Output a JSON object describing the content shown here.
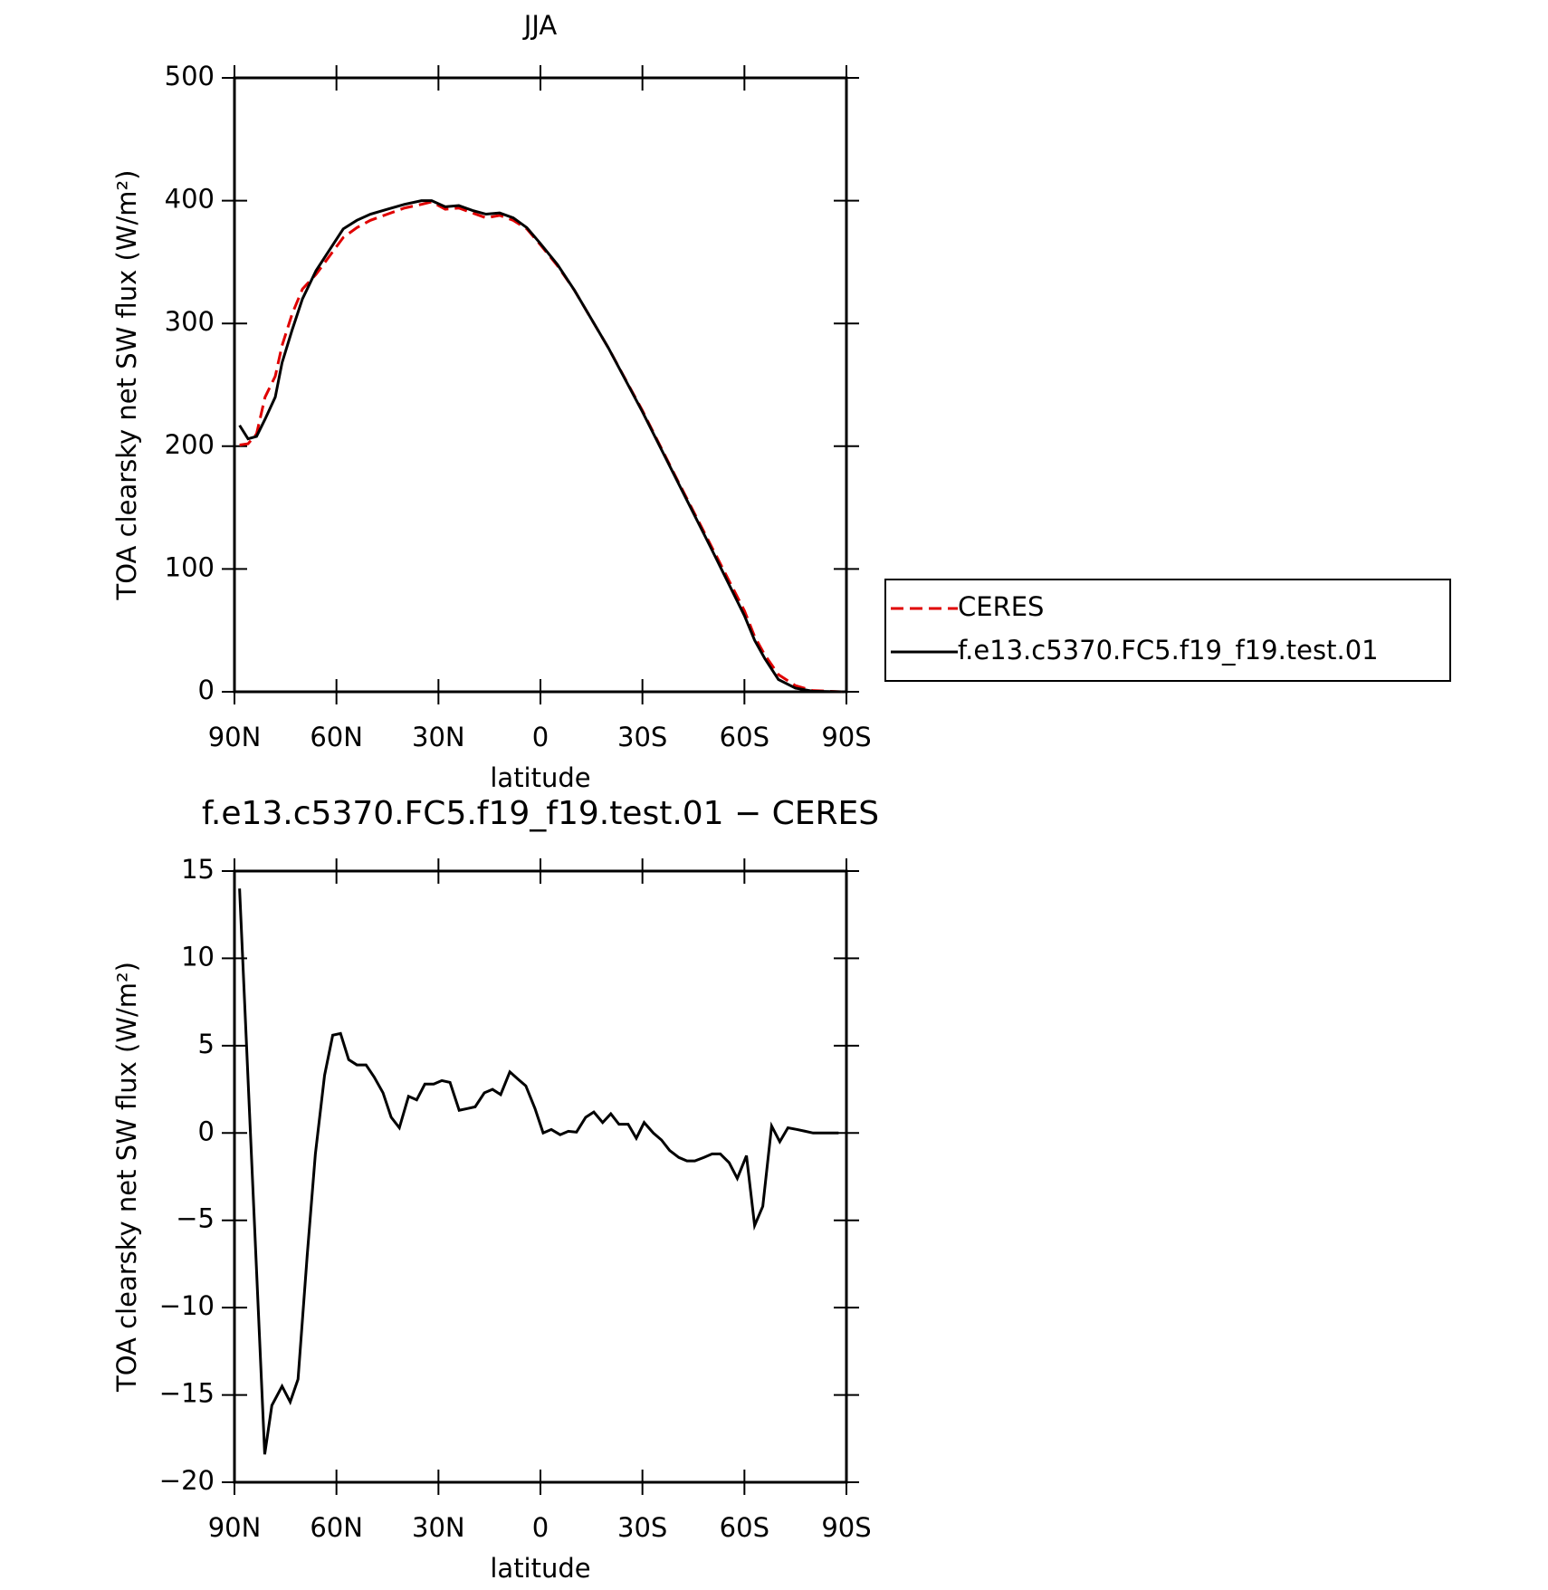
{
  "chart_data": [
    {
      "type": "line",
      "title": "JJA",
      "xlabel": "latitude",
      "ylabel": "TOA clearsky net SW flux (W/m²)",
      "x": [
        88.5,
        86,
        83.5,
        81,
        78,
        76,
        73,
        70,
        66,
        62,
        58,
        54,
        50,
        45,
        40,
        35,
        32,
        28,
        24,
        20,
        16,
        12,
        8,
        4,
        0,
        -5,
        -10,
        -20,
        -30,
        -40,
        -50,
        -55,
        -60,
        -63,
        -66,
        -70,
        -75,
        -80,
        -88.5
      ],
      "series": [
        {
          "name": "CERES",
          "color": "#e00000",
          "dash": true,
          "values": [
            201,
            202,
            210,
            240,
            257,
            282,
            308,
            328,
            340,
            355,
            370,
            378,
            384,
            389,
            394,
            397,
            399,
            393,
            394,
            390,
            386,
            388,
            384,
            377,
            364,
            347,
            327,
            280,
            229,
            174,
            120,
            93,
            66,
            45,
            30,
            14,
            5,
            1,
            0
          ]
        },
        {
          "name": "f.e13.c5370.FC5.f19_f19.test.01",
          "color": "#000000",
          "dash": false,
          "values": [
            217,
            206,
            208,
            222,
            240,
            268,
            295,
            320,
            343,
            360,
            377,
            384,
            389,
            393,
            397,
            400,
            400,
            395,
            396,
            392,
            389,
            390,
            386,
            378,
            365,
            348,
            327,
            280,
            228,
            173,
            118,
            90,
            62,
            42,
            27,
            10,
            3,
            0.5,
            0
          ]
        }
      ],
      "xlim": [
        90,
        -90
      ],
      "xticks": [
        {
          "value": 90,
          "label": "90N"
        },
        {
          "value": 60,
          "label": "60N"
        },
        {
          "value": 30,
          "label": "30N"
        },
        0,
        {
          "value": -30,
          "label": "30S"
        },
        {
          "value": -60,
          "label": "60S"
        },
        {
          "value": -90,
          "label": "90S"
        }
      ],
      "ylim": [
        0,
        500
      ],
      "yticks": [
        0,
        100,
        200,
        300,
        400,
        500
      ],
      "legend": "right"
    },
    {
      "type": "line",
      "title": "f.e13.c5370.FC5.f19_f19.test.01 − CERES",
      "xlabel": "latitude",
      "ylabel": "TOA clearsky net SW flux (W/m²)",
      "x": [
        88.5,
        81.1,
        79,
        76,
        73.6,
        71.3,
        68.6,
        66.2,
        63.5,
        61.1,
        58.8,
        56.4,
        54,
        51.3,
        48.9,
        46.3,
        43.9,
        41.5,
        38.8,
        36.4,
        34,
        31.4,
        29,
        26.6,
        23.9,
        21.5,
        19.2,
        16.5,
        14.1,
        11.7,
        9,
        6.7,
        4.3,
        1.6,
        -0.8,
        -3.2,
        -5.8,
        -8.2,
        -10.6,
        -13.3,
        -15.7,
        -18.3,
        -20.7,
        -23.1,
        -25.8,
        -28.2,
        -30.5,
        -33.2,
        -35.6,
        -38,
        -40.7,
        -43.1,
        -45.4,
        -48.1,
        -50.5,
        -52.9,
        -55.5,
        -57.9,
        -60.6,
        -63,
        -65.4,
        -68,
        -70.4,
        -72.8,
        -75.5,
        -77.9,
        -80.2,
        -82.9,
        -85.3,
        -87.7
      ],
      "series": [
        {
          "color": "#000000",
          "dash": false,
          "values": [
            14.0,
            -18.4,
            -15.6,
            -14.5,
            -15.4,
            -14.1,
            -7.0,
            -1.2,
            3.3,
            5.6,
            5.7,
            4.2,
            3.9,
            3.9,
            3.2,
            2.3,
            0.9,
            0.3,
            2.1,
            1.9,
            2.8,
            2.8,
            3.0,
            2.9,
            1.3,
            1.4,
            1.5,
            2.3,
            2.5,
            2.2,
            3.5,
            3.1,
            2.7,
            1.4,
            0,
            0.2,
            -0.1,
            0.1,
            0.05,
            0.9,
            1.2,
            0.6,
            1.1,
            0.5,
            0.5,
            -0.3,
            0.6,
            0,
            -0.4,
            -1.0,
            -1.4,
            -1.6,
            -1.6,
            -1.4,
            -1.2,
            -1.2,
            -1.7,
            -2.6,
            -1.3,
            -5.3,
            -4.2,
            0.4,
            -0.5,
            0.3,
            0.2,
            0.1,
            0,
            0,
            0,
            0
          ]
        }
      ],
      "xlim": [
        90,
        -90
      ],
      "xticks": [
        {
          "value": 90,
          "label": "90N"
        },
        {
          "value": 60,
          "label": "60N"
        },
        {
          "value": 30,
          "label": "30N"
        },
        0,
        {
          "value": -30,
          "label": "30S"
        },
        {
          "value": -60,
          "label": "60S"
        },
        {
          "value": -90,
          "label": "90S"
        }
      ],
      "ylim": [
        -20,
        15
      ],
      "yticks": [
        {
          "value": -20,
          "label": "−20"
        },
        {
          "value": -15,
          "label": "−15"
        },
        {
          "value": -10,
          "label": "−10"
        },
        {
          "value": -5,
          "label": "−5"
        },
        0,
        5,
        10,
        15
      ]
    }
  ]
}
